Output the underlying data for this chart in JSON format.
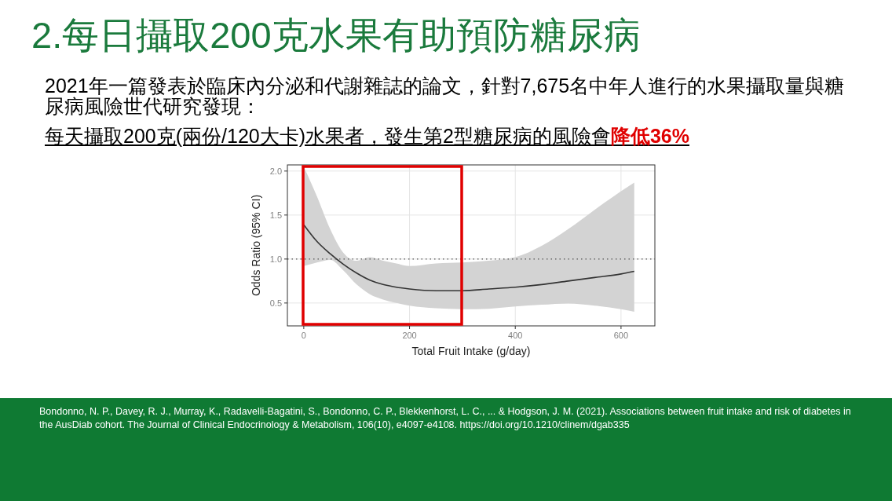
{
  "chart_data": {
    "type": "line",
    "title": "2.每日攝取200克水果有助預防糖尿病",
    "annotations": [
      "2021年一篇發表於臨床內分泌和代謝雜誌的論文，針對7,675名中年人進行的水果攝取量與糖尿病風險世代研究發現：",
      "每天攝取200克(兩份/120大卡)水果者，發生第2型糖尿病的風險會",
      "降低36%",
      "Bondonno, N. P., Davey, R. J., Murray, K., Radavelli-Bagatini, S., Bondonno, C. P., Blekkenhorst, L. C., ... & Hodgson, J. M. (2021). Associations between fruit intake and risk of diabetes in the AusDiab cohort. The Journal of Clinical Endocrinology & Metabolism, 106(10), e4097-e4108. https://doi.org/10.1210/clinem/dgab335"
    ],
    "xlabel": "Total Fruit Intake (g/day)",
    "ylabel": "Odds Ratio (95% CI)",
    "x": [
      0,
      25,
      50,
      75,
      100,
      125,
      150,
      175,
      200,
      250,
      300,
      350,
      400,
      450,
      500,
      550,
      600,
      625
    ],
    "series": [
      {
        "color": "#333333",
        "values": [
          1.39,
          1.2,
          1.06,
          0.94,
          0.84,
          0.76,
          0.71,
          0.68,
          0.66,
          0.64,
          0.64,
          0.66,
          0.68,
          0.71,
          0.75,
          0.79,
          0.83,
          0.86
        ],
        "lower": [
          0.92,
          0.96,
          0.99,
          0.87,
          0.71,
          0.6,
          0.54,
          0.5,
          0.47,
          0.44,
          0.43,
          0.435,
          0.46,
          0.48,
          0.495,
          0.47,
          0.43,
          0.4
        ],
        "upper": [
          2.05,
          1.71,
          1.34,
          1.07,
          0.98,
          1.02,
          0.98,
          0.95,
          0.92,
          0.95,
          0.96,
          0.98,
          1.02,
          1.15,
          1.34,
          1.56,
          1.77,
          1.87
        ]
      }
    ],
    "xlim": [
      -31,
      664
    ],
    "ylim": [
      0.24,
      2.07
    ],
    "xticks": [
      0,
      200,
      400,
      600
    ],
    "yticks": [
      0.5,
      {
        "value": 1,
        "label": "1.0"
      },
      1.5,
      {
        "value": 2,
        "label": "2.0"
      }
    ],
    "grid": true,
    "ref_lines": [
      {
        "axis": "y",
        "value": 1,
        "line_style": "dotted",
        "color": "#555555"
      }
    ]
  }
}
